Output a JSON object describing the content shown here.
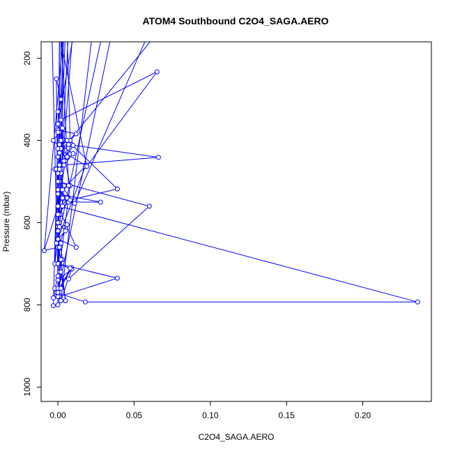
{
  "chart_data": {
    "type": "line",
    "title": "ATOM4 Southbound C2O4_SAGA.AERO",
    "xlabel": "C2O4_SAGA.AERO",
    "ylabel": "Pressure (mbar)",
    "xlim": [
      -0.011,
      0.245
    ],
    "ylim": [
      1035,
      160
    ],
    "y_reversed": true,
    "x_ticks": [
      0.0,
      0.05,
      0.1,
      0.15,
      0.2
    ],
    "x_tick_labels": [
      "0.00",
      "0.05",
      "0.10",
      "0.15",
      "0.20"
    ],
    "y_ticks": [
      200,
      400,
      600,
      800,
      1000
    ],
    "y_tick_labels": [
      "200",
      "400",
      "600",
      "800",
      "1000"
    ],
    "series_color": "#0000ff",
    "marker": "open-circle",
    "grid": false,
    "x": [
      0.002,
      -0.002,
      0.005,
      0.0,
      0.003,
      0.018,
      0.0,
      -0.002,
      0.001,
      0.0,
      0.002,
      -0.001,
      0.0,
      0.004,
      0.002,
      0.001,
      0.0,
      0.003,
      0.0,
      0.001,
      -0.002,
      0.0,
      0.002,
      0.005,
      0.0,
      0.001,
      0.236,
      0.018,
      -0.001,
      0.009,
      0.0,
      0.002,
      -0.001,
      0.0,
      0.001,
      0.002,
      0.003,
      0.006,
      0.0,
      0.001,
      0.0,
      -0.001,
      0.001,
      0.004,
      0.0,
      0.002,
      -0.003,
      0.001,
      0.0,
      0.008,
      0.0,
      0.001,
      0.006,
      0.0,
      -0.009,
      0.0,
      0.012,
      0.0,
      0.005,
      0.0,
      0.001,
      0.0,
      0.003,
      0.007,
      0.028,
      0.0,
      0.007,
      0.001,
      0.0,
      0.009,
      0.039,
      0.008,
      0.0,
      0.0,
      0.002,
      0.0,
      0.039,
      0.001,
      0.002,
      0.009,
      0.0,
      0.007,
      0.06,
      0.0,
      0.011,
      0.0,
      0.001,
      0.01,
      0.002,
      0.006,
      0.001,
      0.007,
      0.066,
      0.004,
      0.01,
      0.001,
      0.008,
      0.012,
      0.0,
      0.003,
      0.002,
      0.065,
      0.019,
      0.0,
      0.006,
      0.0,
      -0.003,
      0.0,
      0.0,
      -0.003,
      0.0,
      0.002,
      0.008,
      0.0,
      0.001
    ],
    "y": [
      480,
      470,
      450,
      560,
      520,
      463,
      640,
      700,
      380,
      330,
      300,
      250,
      600,
      540,
      470,
      420,
      610,
      690,
      730,
      720,
      760,
      780,
      720,
      790,
      640,
      560,
      793,
      793,
      770,
      710,
      770,
      690,
      650,
      610,
      600,
      580,
      560,
      540,
      520,
      500,
      480,
      470,
      460,
      450,
      440,
      420,
      400,
      380,
      360,
      510,
      740,
      610,
      605,
      660,
      668,
      560,
      660,
      640,
      620,
      600,
      580,
      560,
      540,
      550,
      550,
      530,
      510,
      500,
      480,
      410,
      518,
      545,
      580,
      620,
      650,
      700,
      735,
      780,
      790,
      713,
      740,
      737,
      560,
      500,
      553,
      500,
      470,
      412,
      400,
      440,
      430,
      410,
      441,
      460,
      432,
      410,
      400,
      384,
      375,
      370,
      350,
      233,
      463,
      420,
      400,
      380,
      802,
      800,
      760,
      783,
      780,
      760,
      711,
      700,
      660
    ],
    "upstroke_x": [
      0.002,
      0.005,
      0.01,
      -0.004,
      0.03,
      0.036,
      0.003,
      0.001,
      0.011,
      0.004,
      0.007,
      0.002,
      0.004,
      0.023,
      0.061,
      0.068,
      0.006,
      0.0,
      0.001
    ],
    "upstroke_y": [
      160,
      160,
      160,
      160,
      160,
      160,
      160,
      160,
      160,
      160,
      160,
      160,
      160,
      160,
      160,
      160,
      160,
      160,
      160
    ]
  }
}
